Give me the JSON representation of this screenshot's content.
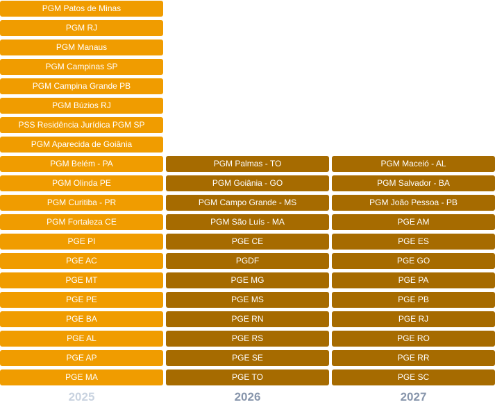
{
  "columns": [
    {
      "year": "2025",
      "items": [
        "PGM Patos de Minas",
        "PGM RJ",
        "PGM Manaus",
        "PGM Campinas SP",
        "PGM Campina Grande PB",
        "PGM Búzios RJ",
        "PSS Residência Jurídica PGM SP",
        "PGM Aparecida de Goiânia",
        "PGM Belém - PA",
        "PGM Olinda PE",
        "PGM Curitiba - PR",
        "PGM Fortaleza CE",
        "PGE PI",
        "PGE AC",
        "PGE MT",
        "PGE PE",
        "PGE BA",
        "PGE AL",
        "PGE AP",
        "PGE MA"
      ]
    },
    {
      "year": "2026",
      "items": [
        "PGM Palmas - TO",
        "PGM Goiânia - GO",
        "PGM Campo Grande - MS",
        "PGM São Luís - MA",
        "PGE CE",
        "PGDF",
        "PGE MG",
        "PGE MS",
        "PGE RN",
        "PGE RS",
        "PGE SE",
        "PGE TO"
      ]
    },
    {
      "year": "2027",
      "items": [
        "PGM Maceió - AL",
        "PGM Salvador - BA",
        "PGM João Pessoa - PB",
        "PGE AM",
        "PGE ES",
        "PGE GO",
        "PGE PA",
        "PGE PB",
        "PGE RJ",
        "PGE RO",
        "PGE RR",
        "PGE SC"
      ]
    }
  ],
  "colors": {
    "chip_2025": "#f09c00",
    "chip_future": "#a66b00",
    "year_2025": "#c9d3e0",
    "year_future": "#8896ac"
  }
}
